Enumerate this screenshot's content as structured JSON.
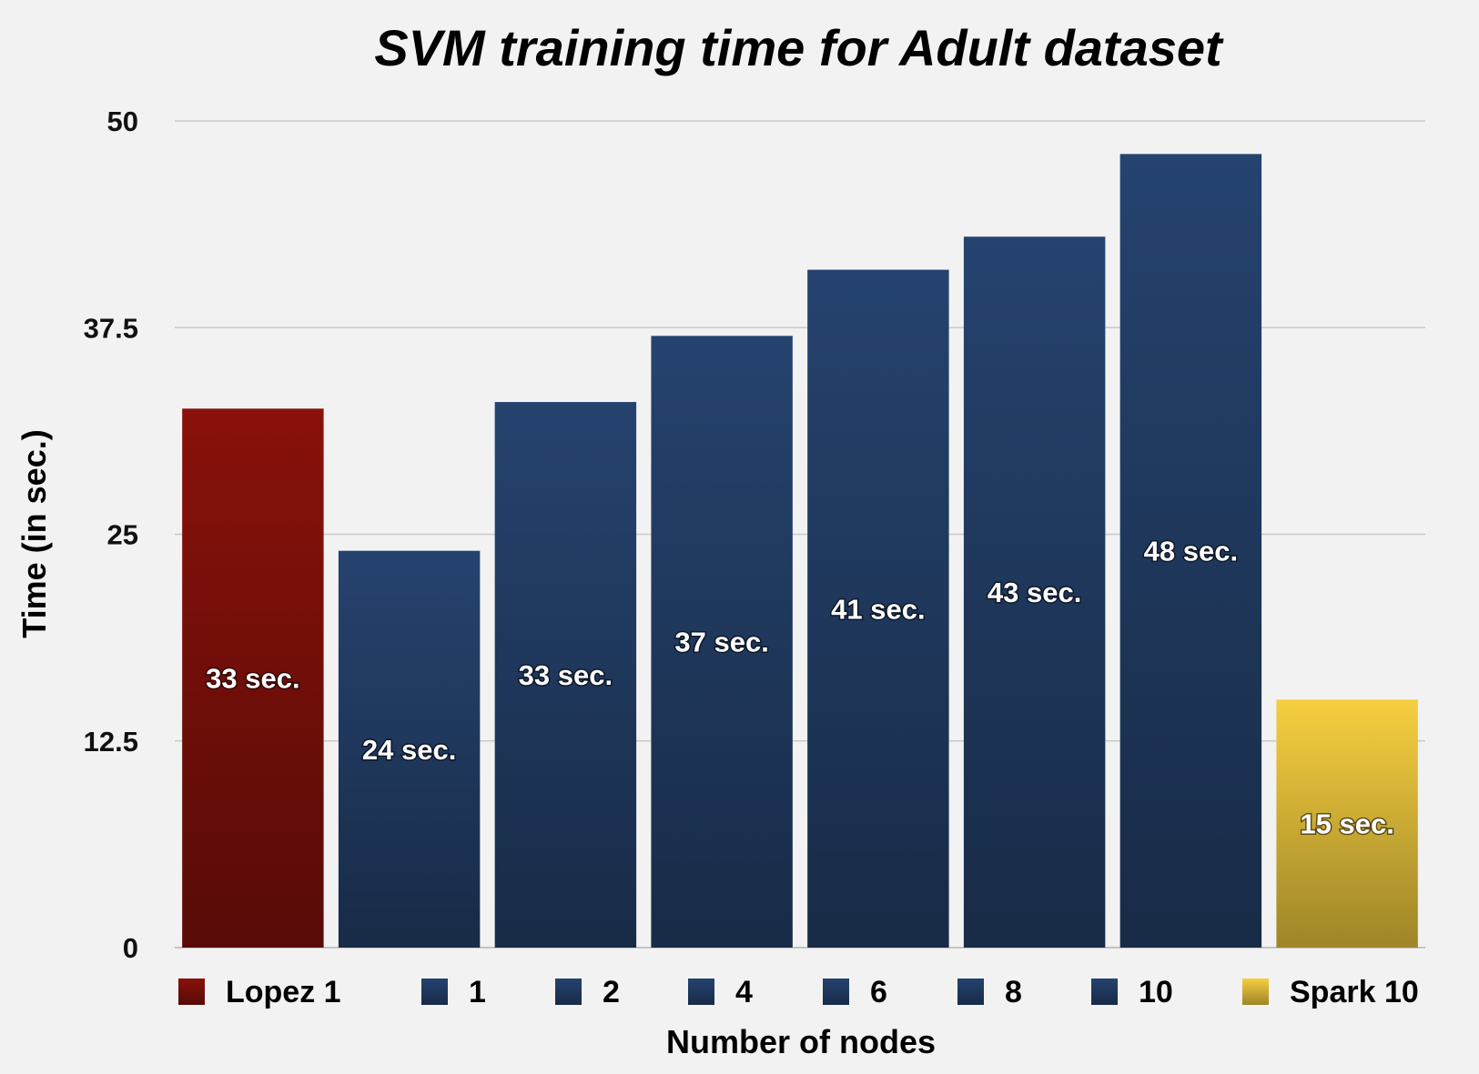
{
  "chart_data": {
    "type": "bar",
    "title": "SVM training time for Adult dataset",
    "xlabel": "Number of nodes",
    "ylabel": "Time (in sec.)",
    "ylim": [
      0,
      50
    ],
    "yticks": [
      "0",
      "12.5",
      "25",
      "37.5",
      "50"
    ],
    "grid": true,
    "legend_position": "bottom",
    "categories": [
      "Lopez 1",
      "1",
      "2",
      "4",
      "6",
      "8",
      "10",
      "Spark 10"
    ],
    "values": [
      32.6,
      24,
      33,
      37,
      41,
      43,
      48,
      15
    ],
    "data_labels": [
      "33 sec.",
      "24 sec.",
      "33 sec.",
      "37 sec.",
      "41 sec.",
      "43 sec.",
      "48 sec.",
      "15 sec."
    ],
    "colors": [
      "#7a0f0a",
      "#213c63",
      "#213c63",
      "#213c63",
      "#213c63",
      "#213c63",
      "#213c63",
      "#dcb938"
    ]
  }
}
